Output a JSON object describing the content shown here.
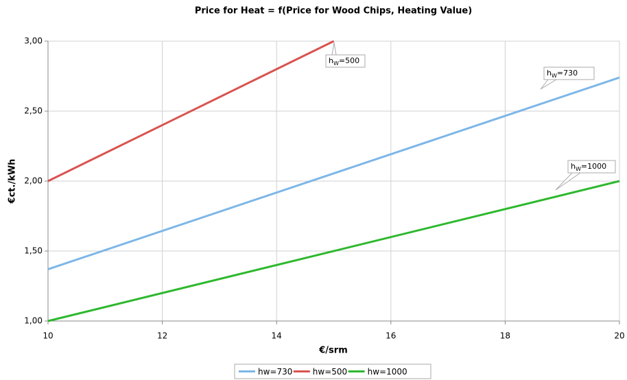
{
  "chart_data": {
    "type": "line",
    "title": "Price for Heat = f(Price for Wood Chips, Heating Value)",
    "xlabel": "€/srm",
    "ylabel": "€ct./kWh",
    "xlim": [
      10,
      20
    ],
    "xticks": [
      10,
      12,
      14,
      16,
      18,
      20
    ],
    "ylim": [
      1,
      3
    ],
    "yticks": [
      {
        "value": 1,
        "label": "1,00"
      },
      {
        "value": 1.5,
        "label": "1,50"
      },
      {
        "value": 2,
        "label": "2,00"
      },
      {
        "value": 2.5,
        "label": "2,50"
      },
      {
        "value": 3,
        "label": "3,00"
      }
    ],
    "grid": true,
    "legend": "bottom",
    "series": [
      {
        "name": "hw=730",
        "color": "#7cb6e8",
        "x": [
          10,
          20
        ],
        "values": [
          1.37,
          2.74
        ]
      },
      {
        "name": "hw=500",
        "color": "#d9534f",
        "x": [
          10,
          15
        ],
        "values": [
          2.0,
          3.0
        ]
      },
      {
        "name": "hw=1000",
        "color": "#2db82d",
        "x": [
          10,
          20
        ],
        "values": [
          1.0,
          2.0
        ]
      }
    ],
    "annotations": [
      {
        "text": "h",
        "sub": "W",
        "tail": "=500"
      },
      {
        "text": "h",
        "sub": "W",
        "tail": "=730"
      },
      {
        "text": "h",
        "sub": "W",
        "tail": "=1000"
      }
    ]
  }
}
